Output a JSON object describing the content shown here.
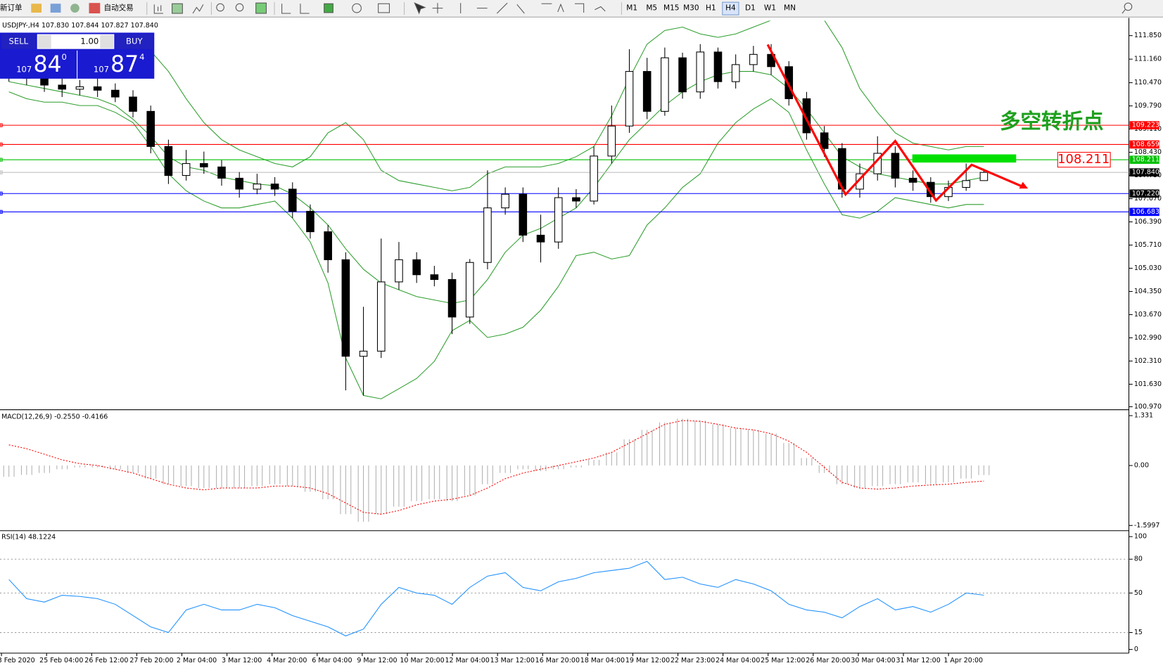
{
  "toolbar": {
    "new_order": "新订单",
    "auto_trade": "自动交易",
    "timeframes": [
      "M1",
      "M5",
      "M15",
      "M30",
      "H1",
      "H4",
      "D1",
      "W1",
      "MN"
    ],
    "active": "H4"
  },
  "chart_header": {
    "symbol": "USDJPY-,H4",
    "quotes": [
      "107.830",
      "107.844",
      "107.827",
      "107.840"
    ]
  },
  "trade_panel": {
    "sell_label": "SELL",
    "buy_label": "BUY",
    "lot": "1.00",
    "sell": {
      "big_figure": "107",
      "pips": "84",
      "fraction": "0"
    },
    "buy": {
      "big_figure": "107",
      "pips": "87",
      "fraction": "4"
    }
  },
  "annotation": "多空转折点",
  "main_chart": {
    "type": "candlestick",
    "ylim": [
      100.905,
      112.285
    ],
    "yticks": [
      {
        "value": 111.85,
        "label": "111.850"
      },
      {
        "value": 111.16,
        "label": "111.160"
      },
      {
        "value": 110.47,
        "label": "110.470"
      },
      {
        "value": 109.79,
        "label": "109.790"
      },
      {
        "value": 109.11,
        "label": "109.110"
      },
      {
        "value": 108.43,
        "label": "108.430"
      },
      {
        "value": 107.75,
        "label": "107.750"
      },
      {
        "value": 107.07,
        "label": "107.070"
      },
      {
        "value": 106.39,
        "label": "106.390"
      },
      {
        "value": 105.71,
        "label": "105.710"
      },
      {
        "value": 105.03,
        "label": "105.030"
      },
      {
        "value": 104.35,
        "label": "104.350"
      },
      {
        "value": 103.67,
        "label": "103.670"
      },
      {
        "value": 102.99,
        "label": "102.990"
      },
      {
        "value": 102.31,
        "label": "102.310"
      },
      {
        "value": 101.63,
        "label": "101.630"
      },
      {
        "value": 100.97,
        "label": "100.970"
      }
    ],
    "open": [
      110.8,
      110.72,
      110.6,
      110.4,
      110.28,
      110.35,
      110.25,
      110.05,
      109.63,
      108.6,
      107.75,
      108.1,
      108.0,
      107.67,
      107.35,
      107.5,
      107.35,
      106.7,
      106.1,
      105.28,
      102.45,
      102.6,
      104.63,
      105.28,
      104.84,
      104.7,
      103.6,
      105.2,
      106.8,
      107.2,
      106.0,
      105.8,
      107.1,
      107.0,
      108.32,
      109.2,
      110.8,
      109.63,
      111.2,
      110.2,
      111.37,
      110.5,
      111.0,
      111.3,
      110.94,
      110.0,
      109.0,
      108.54,
      107.35,
      107.8,
      108.4,
      107.67,
      107.55,
      107.13,
      107.4,
      107.6
    ],
    "high": [
      110.98,
      110.92,
      110.8,
      110.6,
      110.55,
      110.6,
      110.45,
      110.25,
      109.8,
      108.8,
      108.5,
      108.45,
      108.2,
      107.85,
      107.8,
      107.7,
      107.55,
      106.9,
      106.3,
      105.5,
      103.9,
      105.9,
      105.8,
      105.5,
      105.1,
      104.9,
      105.3,
      107.9,
      107.4,
      107.4,
      106.6,
      107.4,
      107.35,
      108.6,
      109.8,
      111.45,
      111.2,
      111.5,
      111.35,
      111.6,
      111.5,
      111.3,
      111.55,
      111.6,
      111.1,
      110.2,
      109.2,
      108.7,
      108.1,
      108.9,
      108.6,
      107.9,
      107.7,
      107.6,
      108.1,
      107.95
    ],
    "low": [
      110.5,
      110.4,
      110.2,
      110.05,
      110.1,
      110.05,
      109.9,
      109.45,
      108.4,
      107.5,
      107.6,
      107.8,
      107.45,
      107.1,
      107.2,
      107.15,
      106.5,
      105.9,
      104.9,
      101.45,
      101.3,
      102.4,
      104.4,
      104.6,
      104.5,
      103.1,
      103.4,
      105.0,
      106.6,
      105.8,
      105.2,
      105.6,
      106.8,
      106.9,
      108.1,
      109.0,
      109.4,
      109.5,
      110.0,
      110.0,
      110.3,
      110.3,
      110.8,
      110.7,
      109.8,
      108.8,
      108.3,
      107.1,
      107.1,
      107.6,
      107.4,
      107.3,
      106.95,
      107.0,
      107.3,
      107.6
    ],
    "close": [
      110.72,
      110.6,
      110.4,
      110.28,
      110.35,
      110.25,
      110.05,
      109.63,
      108.6,
      107.75,
      108.1,
      108.0,
      107.67,
      107.35,
      107.5,
      107.35,
      106.7,
      106.1,
      105.28,
      102.45,
      102.6,
      104.63,
      105.28,
      104.84,
      104.7,
      103.6,
      105.2,
      106.8,
      107.2,
      106.0,
      105.8,
      107.1,
      107.0,
      108.32,
      109.2,
      110.8,
      109.63,
      111.2,
      110.2,
      111.37,
      110.5,
      111.0,
      111.3,
      110.94,
      110.0,
      109.0,
      108.54,
      107.35,
      107.8,
      108.4,
      107.67,
      107.55,
      107.13,
      107.4,
      107.6,
      107.84
    ],
    "bands": {
      "color": "#2e9e2e",
      "upper": [
        111.0,
        111.3,
        111.5,
        111.7,
        111.8,
        111.8,
        111.8,
        111.6,
        111.4,
        110.8,
        110.0,
        109.3,
        108.8,
        108.5,
        108.3,
        108.1,
        108.0,
        108.3,
        109.0,
        109.3,
        108.8,
        107.9,
        107.6,
        107.5,
        107.4,
        107.3,
        107.4,
        107.8,
        108.0,
        108.0,
        108.0,
        108.1,
        108.3,
        108.6,
        109.5,
        110.6,
        111.6,
        112.0,
        112.1,
        111.9,
        111.8,
        111.9,
        112.1,
        112.3,
        112.4,
        112.5,
        112.3,
        111.5,
        110.3,
        109.6,
        109.0,
        108.7,
        108.6,
        108.5,
        108.6,
        108.6
      ],
      "middle": [
        110.5,
        110.4,
        110.3,
        110.2,
        110.1,
        110.0,
        109.8,
        109.4,
        108.9,
        108.3,
        108.0,
        107.9,
        107.7,
        107.6,
        107.5,
        107.45,
        107.2,
        106.8,
        106.3,
        105.6,
        105.0,
        104.6,
        104.4,
        104.2,
        104.1,
        104.0,
        104.1,
        104.7,
        105.5,
        106.0,
        106.2,
        106.5,
        106.8,
        107.4,
        108.1,
        108.8,
        109.3,
        109.8,
        110.2,
        110.5,
        110.7,
        110.8,
        110.8,
        110.7,
        110.3,
        109.7,
        109.0,
        108.3,
        108.0,
        107.8,
        107.7,
        107.6,
        107.5,
        107.5,
        107.6,
        107.7
      ],
      "lower": [
        110.2,
        110.0,
        109.9,
        109.9,
        109.8,
        109.8,
        109.6,
        109.3,
        108.6,
        107.8,
        107.3,
        107.0,
        106.8,
        106.8,
        106.9,
        107.0,
        106.5,
        105.8,
        104.6,
        102.4,
        101.3,
        101.2,
        101.5,
        101.8,
        102.3,
        103.2,
        103.5,
        103.0,
        103.1,
        103.3,
        103.8,
        104.5,
        105.4,
        105.5,
        105.3,
        105.4,
        106.3,
        106.8,
        107.4,
        107.8,
        108.7,
        109.3,
        109.7,
        110.0,
        109.6,
        108.5,
        107.5,
        106.6,
        106.5,
        106.7,
        107.1,
        107.0,
        106.9,
        106.8,
        106.9,
        106.9
      ]
    },
    "levels": [
      {
        "value": 109.223,
        "color": "#ff0000"
      },
      {
        "value": 108.659,
        "color": "#ff0000"
      },
      {
        "value": 108.211,
        "color": "#00c000"
      },
      {
        "value": 107.84,
        "label": "107.840",
        "color": "#c0c0c0"
      },
      {
        "value": 107.22,
        "label": "107.220",
        "color": "#0000ff"
      },
      {
        "value": 106.683,
        "color": "#0000ff"
      }
    ]
  },
  "macd": {
    "title": "MACD(12,26,9) -0.2550 -0.4166",
    "ylim": [
      -1.7,
      1.43
    ],
    "yticks": [
      1.331,
      {
        "value": 0,
        "label": "0.00"
      },
      -1.5997
    ],
    "main": [
      -0.3,
      -0.25,
      -0.2,
      -0.1,
      -0.05,
      -0.05,
      -0.1,
      -0.2,
      -0.35,
      -0.5,
      -0.55,
      -0.6,
      -0.6,
      -0.6,
      -0.55,
      -0.5,
      -0.55,
      -0.7,
      -0.9,
      -1.3,
      -1.5,
      -1.3,
      -1.1,
      -0.95,
      -0.9,
      -0.95,
      -0.8,
      -0.5,
      -0.2,
      -0.1,
      -0.15,
      -0.1,
      -0.05,
      0.15,
      0.35,
      0.7,
      0.95,
      1.15,
      1.25,
      1.2,
      1.1,
      1.0,
      0.95,
      0.85,
      0.6,
      0.2,
      -0.2,
      -0.5,
      -0.6,
      -0.55,
      -0.5,
      -0.45,
      -0.5,
      -0.45,
      -0.35,
      -0.255
    ],
    "signal": [
      0.55,
      0.45,
      0.3,
      0.15,
      0.05,
      0.0,
      -0.1,
      -0.2,
      -0.35,
      -0.5,
      -0.6,
      -0.65,
      -0.6,
      -0.6,
      -0.6,
      -0.55,
      -0.55,
      -0.6,
      -0.75,
      -1.0,
      -1.25,
      -1.3,
      -1.2,
      -1.05,
      -0.95,
      -0.9,
      -0.8,
      -0.6,
      -0.35,
      -0.2,
      -0.1,
      0.0,
      0.1,
      0.2,
      0.35,
      0.6,
      0.85,
      1.1,
      1.2,
      1.18,
      1.1,
      1.0,
      0.95,
      0.85,
      0.65,
      0.35,
      -0.05,
      -0.45,
      -0.6,
      -0.63,
      -0.6,
      -0.55,
      -0.52,
      -0.5,
      -0.45,
      -0.4166
    ]
  },
  "rsi": {
    "title": "RSI(14) 48.1224",
    "ylim": [
      0,
      100
    ],
    "yticks": [
      100,
      80,
      50,
      15,
      0
    ],
    "values": [
      62,
      45,
      42,
      48,
      47,
      45,
      40,
      30,
      20,
      15,
      35,
      40,
      35,
      35,
      40,
      37,
      30,
      25,
      20,
      12,
      18,
      40,
      55,
      50,
      48,
      40,
      55,
      65,
      68,
      55,
      52,
      60,
      63,
      68,
      70,
      72,
      78,
      62,
      64,
      58,
      55,
      62,
      58,
      52,
      40,
      35,
      33,
      28,
      38,
      45,
      35,
      38,
      33,
      40,
      50,
      48.1224
    ]
  },
  "time_axis": [
    "3 Feb 2020",
    "25 Feb 04:00",
    "26 Feb 12:00",
    "27 Feb 20:00",
    "2 Mar 04:00",
    "3 Mar 12:00",
    "4 Mar 20:00",
    "6 Mar 04:00",
    "9 Mar 12:00",
    "10 Mar 20:00",
    "12 Mar 04:00",
    "13 Mar 12:00",
    "16 Mar 20:00",
    "18 Mar 04:00",
    "19 Mar 12:00",
    "22 Mar 23:00",
    "24 Mar 04:00",
    "25 Mar 12:00",
    "26 Mar 20:00",
    "30 Mar 04:00",
    "31 Mar 12:00",
    "1 Apr 20:00"
  ]
}
